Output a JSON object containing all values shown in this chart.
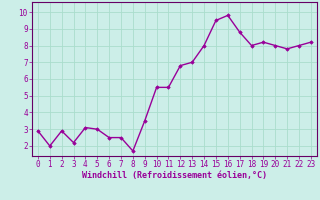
{
  "x": [
    0,
    1,
    2,
    3,
    4,
    5,
    6,
    7,
    8,
    9,
    10,
    11,
    12,
    13,
    14,
    15,
    16,
    17,
    18,
    19,
    20,
    21,
    22,
    23
  ],
  "y": [
    2.9,
    2.0,
    2.9,
    2.2,
    3.1,
    3.0,
    2.5,
    2.5,
    1.7,
    3.5,
    5.5,
    5.5,
    6.8,
    7.0,
    8.0,
    9.5,
    9.8,
    8.8,
    8.0,
    8.2,
    8.0,
    7.8,
    8.0,
    8.2
  ],
  "line_color": "#990099",
  "marker": "D",
  "marker_size": 1.8,
  "bg_color": "#cceee8",
  "grid_color": "#aaddcc",
  "xlabel": "Windchill (Refroidissement éolien,°C)",
  "xlabel_fontsize": 6.0,
  "xlim": [
    -0.5,
    23.5
  ],
  "ylim": [
    1.4,
    10.6
  ],
  "yticks": [
    2,
    3,
    4,
    5,
    6,
    7,
    8,
    9,
    10
  ],
  "xticks": [
    0,
    1,
    2,
    3,
    4,
    5,
    6,
    7,
    8,
    9,
    10,
    11,
    12,
    13,
    14,
    15,
    16,
    17,
    18,
    19,
    20,
    21,
    22,
    23
  ],
  "tick_fontsize": 5.5,
  "line_width": 1.0,
  "spine_color": "#660066"
}
